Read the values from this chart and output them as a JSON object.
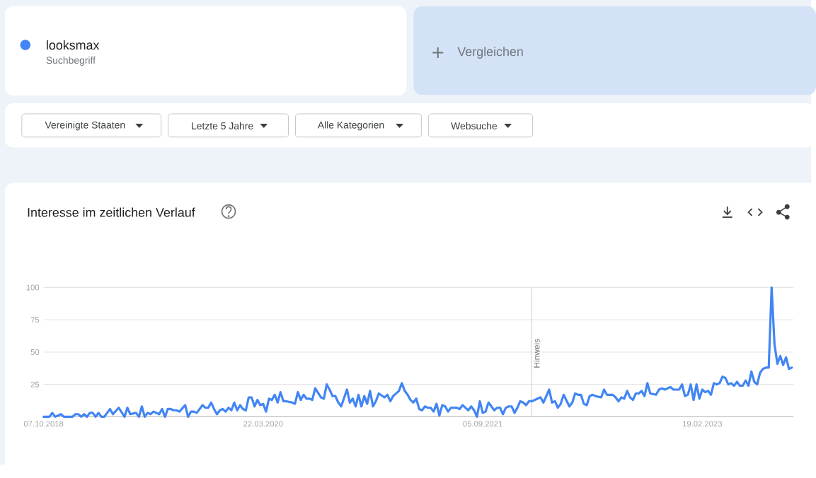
{
  "chart_data": {
    "type": "line",
    "title": "Interesse im zeitlichen Verlauf",
    "annotations": [
      "Suchbegriff",
      "Vergleichen",
      "Vereinigte Staaten",
      "Letzte 5 Jahre",
      "Alle Kategorien",
      "Websuche"
    ],
    "x": [
      "2018-10-07",
      "2018-10-21",
      "2018-10-28",
      "2018-11-04",
      "2018-11-18",
      "2018-11-25",
      "2018-12-16",
      "2018-12-23",
      "2018-12-30",
      "2019-01-06",
      "2019-01-13",
      "2019-01-20",
      "2019-01-27",
      "2019-02-03",
      "2019-02-10",
      "2019-02-17",
      "2019-02-24",
      "2019-03-03",
      "2019-03-17",
      "2019-03-24",
      "2019-04-07",
      "2019-04-21",
      "2019-04-28",
      "2019-05-05",
      "2019-05-19",
      "2019-05-26",
      "2019-06-02",
      "2019-06-09",
      "2019-06-16",
      "2019-06-23",
      "2019-06-30",
      "2019-07-14",
      "2019-07-21",
      "2019-07-28",
      "2019-08-04",
      "2019-08-11",
      "2019-08-18",
      "2019-08-25",
      "2019-09-01",
      "2019-09-15",
      "2019-09-22",
      "2019-09-29",
      "2019-10-06",
      "2019-10-13",
      "2019-10-27",
      "2019-11-03",
      "2019-11-10",
      "2019-11-17",
      "2019-11-24",
      "2019-12-01",
      "2019-12-08",
      "2019-12-15",
      "2019-12-22",
      "2019-12-29",
      "2020-01-05",
      "2020-01-12",
      "2020-01-19",
      "2020-01-26",
      "2020-02-02",
      "2020-02-09",
      "2020-02-16",
      "2020-02-23",
      "2020-03-01",
      "2020-03-08",
      "2020-03-15",
      "2020-03-22",
      "2020-03-29",
      "2020-04-05",
      "2020-04-12",
      "2020-04-19",
      "2020-04-26",
      "2020-05-03",
      "2020-05-10",
      "2020-05-17",
      "2020-05-31",
      "2020-06-07",
      "2020-06-14",
      "2020-06-21",
      "2020-06-28",
      "2020-07-05",
      "2020-07-12",
      "2020-07-19",
      "2020-07-26",
      "2020-08-09",
      "2020-08-16",
      "2020-08-23",
      "2020-08-30",
      "2020-09-06",
      "2020-09-13",
      "2020-09-20",
      "2020-09-27",
      "2020-10-11",
      "2020-10-18",
      "2020-10-25",
      "2020-11-01",
      "2020-11-08",
      "2020-11-15",
      "2020-11-22",
      "2020-11-29",
      "2020-12-06",
      "2020-12-13",
      "2020-12-20",
      "2020-12-27",
      "2021-01-10",
      "2021-01-17",
      "2021-01-24",
      "2021-01-31",
      "2021-02-14",
      "2021-02-21",
      "2021-02-28",
      "2021-03-07",
      "2021-03-14",
      "2021-03-21",
      "2021-03-28",
      "2021-04-04",
      "2021-04-11",
      "2021-04-18",
      "2021-04-25",
      "2021-05-02",
      "2021-05-09",
      "2021-05-16",
      "2021-05-23",
      "2021-05-30",
      "2021-06-06",
      "2021-06-13",
      "2021-06-20",
      "2021-07-04",
      "2021-07-11",
      "2021-07-18",
      "2021-07-25",
      "2021-08-01",
      "2021-08-08",
      "2021-08-15",
      "2021-08-22",
      "2021-08-29",
      "2021-09-05",
      "2021-09-12",
      "2021-09-19",
      "2021-09-26",
      "2021-10-03",
      "2021-10-10",
      "2021-10-17",
      "2021-10-24",
      "2021-10-31",
      "2021-11-07",
      "2021-11-14",
      "2021-11-21",
      "2021-11-28",
      "2021-12-05",
      "2021-12-12",
      "2021-12-19",
      "2021-12-26",
      "2022-01-02",
      "2022-01-16",
      "2022-01-23",
      "2022-01-30",
      "2022-02-13",
      "2022-02-20",
      "2022-02-27",
      "2022-03-06",
      "2022-03-13",
      "2022-03-20",
      "2022-04-03",
      "2022-04-10",
      "2022-04-17",
      "2022-04-24",
      "2022-05-01",
      "2022-05-08",
      "2022-05-15",
      "2022-05-22",
      "2022-05-29",
      "2022-06-05",
      "2022-06-19",
      "2022-06-26",
      "2022-07-03",
      "2022-07-17",
      "2022-07-24",
      "2022-07-31",
      "2022-08-07",
      "2022-08-14",
      "2022-08-21",
      "2022-08-28",
      "2022-09-04",
      "2022-09-11",
      "2022-09-18",
      "2022-09-25",
      "2022-10-02",
      "2022-10-09",
      "2022-10-16",
      "2022-10-30",
      "2022-11-06",
      "2022-11-13",
      "2022-11-20",
      "2022-12-04",
      "2022-12-11",
      "2022-12-25",
      "2023-01-01",
      "2023-01-08",
      "2023-01-15",
      "2023-01-22",
      "2023-01-29",
      "2023-02-05",
      "2023-02-12",
      "2023-02-19",
      "2023-02-26",
      "2023-03-05",
      "2023-03-12",
      "2023-03-19",
      "2023-03-26",
      "2023-04-02",
      "2023-04-09",
      "2023-04-16",
      "2023-04-23",
      "2023-04-30",
      "2023-05-07",
      "2023-05-14",
      "2023-05-21",
      "2023-05-28",
      "2023-06-04",
      "2023-06-11",
      "2023-06-18",
      "2023-06-25",
      "2023-07-02",
      "2023-07-09",
      "2023-07-16",
      "2023-07-23",
      "2023-07-30",
      "2023-08-06",
      "2023-08-13",
      "2023-08-20",
      "2023-08-27",
      "2023-09-03",
      "2023-09-10",
      "2023-09-17",
      "2023-09-24"
    ],
    "series": [
      {
        "name": "looksmax",
        "color": "#4285f4",
        "values": [
          0,
          0,
          3,
          0,
          2,
          0,
          0,
          2,
          2,
          0,
          2,
          0,
          3,
          3,
          0,
          3,
          0,
          0,
          6,
          2,
          7,
          0,
          7,
          2,
          3,
          0,
          8,
          0,
          3,
          2,
          4,
          2,
          6,
          0,
          6,
          6,
          5,
          5,
          4,
          9,
          0,
          4,
          4,
          3,
          9,
          7,
          7,
          11,
          6,
          2,
          5,
          6,
          4,
          7,
          5,
          11,
          5,
          9,
          6,
          5,
          15,
          15,
          8,
          13,
          9,
          10,
          4,
          14,
          13,
          17,
          11,
          19,
          12,
          12,
          11,
          10,
          19,
          13,
          17,
          14,
          14,
          13,
          22,
          15,
          14,
          25,
          21,
          16,
          16,
          11,
          8,
          21,
          11,
          14,
          8,
          17,
          8,
          16,
          10,
          20,
          8,
          12,
          18,
          15,
          17,
          12,
          16,
          20,
          26,
          20,
          17,
          13,
          11,
          14,
          6,
          5,
          8,
          7,
          7,
          4,
          10,
          1,
          9,
          8,
          4,
          7,
          7,
          6,
          9,
          7,
          5,
          8,
          5,
          0,
          12,
          3,
          4,
          11,
          8,
          5,
          7,
          7,
          2,
          7,
          8,
          8,
          3,
          7,
          12,
          11,
          9,
          12,
          12,
          14,
          15,
          11,
          21,
          11,
          12,
          7,
          10,
          17,
          8,
          11,
          18,
          17,
          17,
          10,
          9,
          16,
          17,
          16,
          15,
          21,
          17,
          17,
          15,
          12,
          15,
          14,
          20,
          15,
          13,
          18,
          18,
          20,
          16,
          26,
          18,
          17,
          21,
          22,
          21,
          23,
          21,
          21,
          25,
          16,
          17,
          25,
          13,
          25,
          14,
          21,
          19,
          20,
          17,
          26,
          25,
          26,
          31,
          30,
          25,
          26,
          24,
          27,
          24,
          24,
          28,
          24,
          35,
          27,
          25,
          34,
          37,
          38,
          38,
          100,
          56,
          41,
          47,
          40,
          46,
          37,
          38
        ]
      }
    ],
    "xlim": [
      "2018-10-07",
      "2023-09-28"
    ],
    "ylim": [
      0,
      100
    ],
    "xticks": [
      {
        "value": "2018-10-07",
        "label": "07.10.2018"
      },
      {
        "value": "2020-03-22",
        "label": "22.03.2020"
      },
      {
        "value": "2021-09-05",
        "label": "05.09.2021"
      },
      {
        "value": "2023-02-19",
        "label": "19.02.2023"
      }
    ],
    "yticks": [
      25,
      50,
      75,
      100
    ],
    "ref_lines": [
      {
        "axis": "x",
        "value": "2022-01-01",
        "label": "Hinweis",
        "color": "#cccccc"
      }
    ],
    "grid": "y",
    "legend": "top left",
    "line_style": "solid"
  }
}
